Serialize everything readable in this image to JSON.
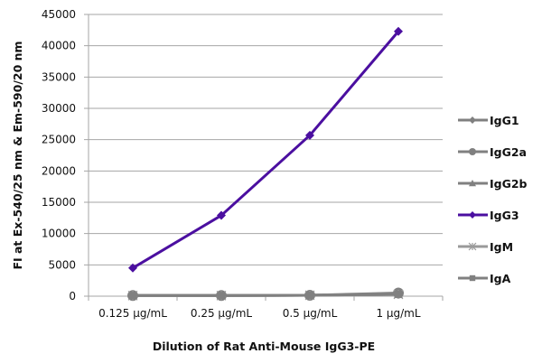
{
  "chart_data": {
    "type": "line",
    "title": "",
    "xlabel": "Dilution of Rat Anti-Mouse IgG3-PE",
    "ylabel": "FI at Ex-540/25 nm & Em-590/20 nm",
    "categories": [
      "0.125 µg/mL",
      "0.25 µg/mL",
      "0.5 µg/mL",
      "1 µg/mL"
    ],
    "ylim": [
      0,
      45000
    ],
    "yticks": [
      0,
      5000,
      10000,
      15000,
      20000,
      25000,
      30000,
      35000,
      40000,
      45000
    ],
    "grid": true,
    "legend_position": "right",
    "series": [
      {
        "name": "IgG1",
        "color": "#808080",
        "marker": "diamond",
        "values": [
          100,
          100,
          150,
          300
        ]
      },
      {
        "name": "IgG2a",
        "color": "#808080",
        "marker": "circle",
        "values": [
          100,
          100,
          150,
          500
        ]
      },
      {
        "name": "IgG2b",
        "color": "#808080",
        "marker": "triangle",
        "values": [
          100,
          100,
          150,
          300
        ]
      },
      {
        "name": "IgG3",
        "color": "#4b0fa0",
        "marker": "diamond",
        "values": [
          4500,
          12900,
          25700,
          42300
        ]
      },
      {
        "name": "IgM",
        "color": "#9a9a9a",
        "marker": "star",
        "values": [
          100,
          100,
          150,
          300
        ]
      },
      {
        "name": "IgA",
        "color": "#808080",
        "marker": "square",
        "values": [
          100,
          100,
          150,
          300
        ]
      }
    ]
  }
}
